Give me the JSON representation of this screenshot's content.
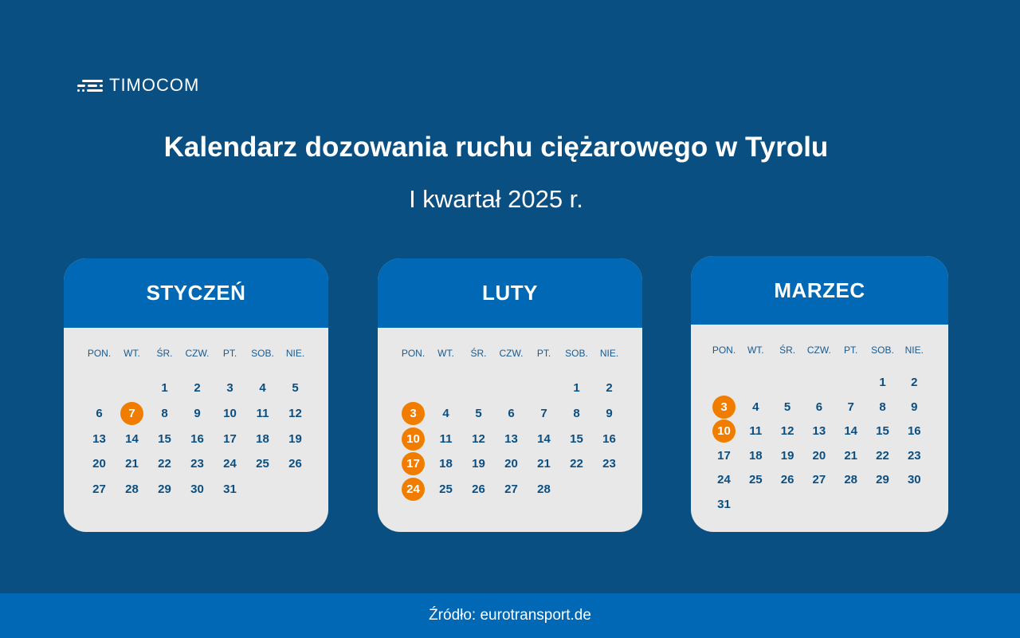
{
  "brand": {
    "name": "TIMOCOM",
    "logo_icon": "timocom-lines-icon"
  },
  "title": "Kalendarz dozowania ruchu ciężarowego w Tyrolu",
  "subtitle": "I kwartał 2025 r.",
  "weekdays": [
    "PON.",
    "WT.",
    "ŚR.",
    "CZW.",
    "PT.",
    "SOB.",
    "NIE."
  ],
  "colors": {
    "background": "#0a4f82",
    "header": "#0068b4",
    "card": "#e8e8e8",
    "highlight": "#f07d00",
    "day_text": "#0b4f82"
  },
  "months": [
    {
      "name": "STYCZEŃ",
      "first_weekday": 3,
      "days": 31,
      "highlighted": [
        7
      ]
    },
    {
      "name": "LUTY",
      "first_weekday": 6,
      "days": 28,
      "highlighted": [
        3,
        10,
        17,
        24
      ]
    },
    {
      "name": "MARZEC",
      "first_weekday": 6,
      "days": 31,
      "highlighted": [
        3,
        10
      ]
    }
  ],
  "footer": {
    "source": "Źródło: eurotransport.de"
  }
}
